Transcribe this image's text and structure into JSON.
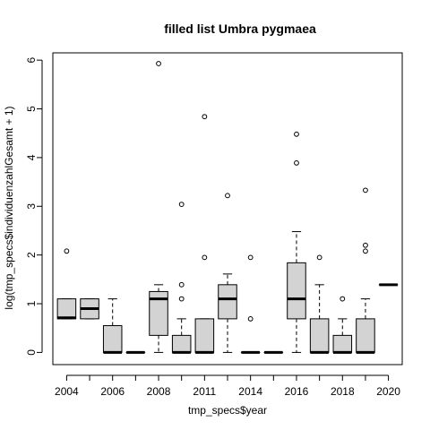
{
  "chart_data": {
    "type": "box",
    "title": "filled list Umbra pygmaea",
    "xlabel": "tmp_specs$year",
    "ylabel": "log(tmp_specs$individuenzahlGesamt + 1)",
    "ylim": [
      -0.25,
      6.15
    ],
    "yticks": [
      0,
      1,
      2,
      3,
      4,
      5,
      6
    ],
    "grid": false,
    "box_fill": "#d3d3d3",
    "categories": [
      "2004",
      "2005",
      "2006",
      "2007",
      "2008",
      "2009",
      "2011",
      "2013",
      "2014",
      "2015",
      "2016",
      "2017",
      "2018",
      "2019",
      "2020"
    ],
    "xtick_labels": [
      "2004",
      "",
      "2006",
      "",
      "2008",
      "",
      "2011",
      "",
      "2014",
      "",
      "2016",
      "",
      "2018",
      "",
      "2020"
    ],
    "boxes": [
      {
        "year": "2004",
        "lower_whisker": 0.69,
        "q1": 0.69,
        "median": 0.71,
        "q3": 1.1,
        "upper_whisker": 1.1,
        "outliers": [
          2.08
        ]
      },
      {
        "year": "2005",
        "lower_whisker": 0.69,
        "q1": 0.69,
        "median": 0.9,
        "q3": 1.1,
        "upper_whisker": 1.1,
        "outliers": []
      },
      {
        "year": "2006",
        "lower_whisker": 0,
        "q1": 0,
        "median": 0,
        "q3": 0.55,
        "upper_whisker": 1.1,
        "outliers": []
      },
      {
        "year": "2007",
        "lower_whisker": 0,
        "q1": 0,
        "median": 0,
        "q3": 0,
        "upper_whisker": 0,
        "outliers": []
      },
      {
        "year": "2008",
        "lower_whisker": 0,
        "q1": 0.35,
        "median": 1.1,
        "q3": 1.25,
        "upper_whisker": 1.39,
        "outliers": [
          5.93
        ]
      },
      {
        "year": "2009",
        "lower_whisker": 0,
        "q1": 0,
        "median": 0,
        "q3": 0.35,
        "upper_whisker": 0.69,
        "outliers": [
          1.1,
          1.39,
          3.04
        ]
      },
      {
        "year": "2011",
        "lower_whisker": 0,
        "q1": 0,
        "median": 0,
        "q3": 0.69,
        "upper_whisker": 0.69,
        "outliers": [
          1.95,
          4.84
        ]
      },
      {
        "year": "2013",
        "lower_whisker": 0,
        "q1": 0.69,
        "median": 1.1,
        "q3": 1.39,
        "upper_whisker": 1.61,
        "outliers": [
          3.22
        ]
      },
      {
        "year": "2014",
        "lower_whisker": 0,
        "q1": 0,
        "median": 0,
        "q3": 0,
        "upper_whisker": 0,
        "outliers": [
          0.69,
          1.95
        ]
      },
      {
        "year": "2015",
        "lower_whisker": 0,
        "q1": 0,
        "median": 0,
        "q3": 0,
        "upper_whisker": 0,
        "outliers": []
      },
      {
        "year": "2016",
        "lower_whisker": 0,
        "q1": 0.69,
        "median": 1.1,
        "q3": 1.84,
        "upper_whisker": 2.48,
        "outliers": [
          3.89,
          4.48
        ]
      },
      {
        "year": "2017",
        "lower_whisker": 0,
        "q1": 0,
        "median": 0,
        "q3": 0.69,
        "upper_whisker": 1.39,
        "outliers": [
          1.95
        ]
      },
      {
        "year": "2018",
        "lower_whisker": 0,
        "q1": 0,
        "median": 0,
        "q3": 0.35,
        "upper_whisker": 0.69,
        "outliers": [
          1.1
        ]
      },
      {
        "year": "2019",
        "lower_whisker": 0,
        "q1": 0,
        "median": 0,
        "q3": 0.69,
        "upper_whisker": 1.1,
        "outliers": [
          2.08,
          2.2,
          3.33
        ]
      },
      {
        "year": "2020",
        "lower_whisker": 1.39,
        "q1": 1.39,
        "median": 1.39,
        "q3": 1.39,
        "upper_whisker": 1.39,
        "outliers": []
      }
    ]
  }
}
